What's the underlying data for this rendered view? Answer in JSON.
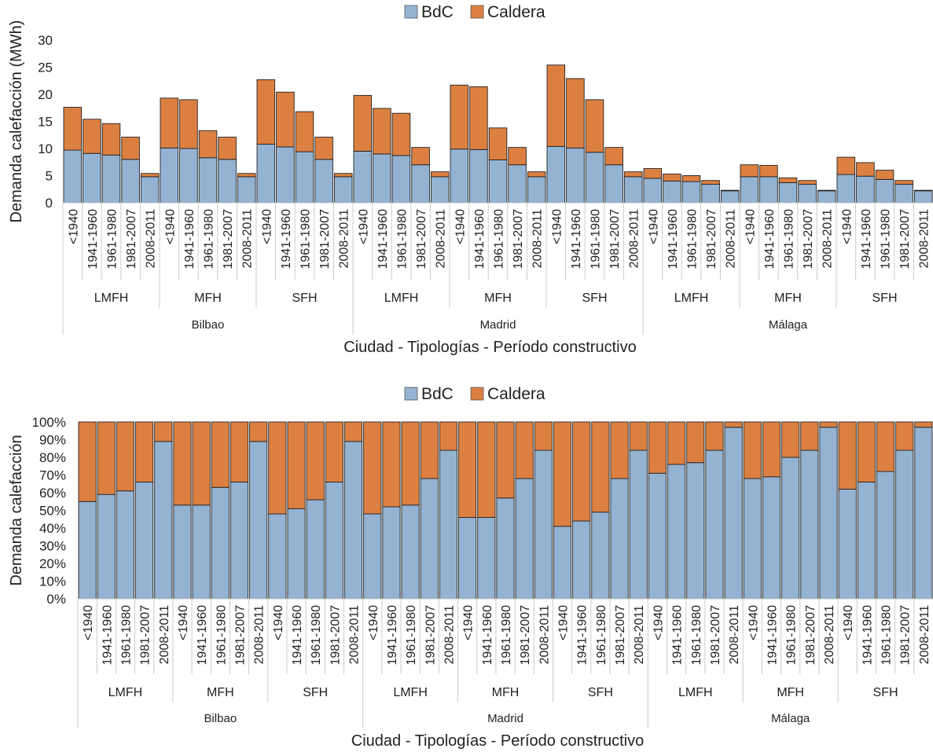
{
  "legend": [
    {
      "label": "BdC",
      "color": "#94b3d3"
    },
    {
      "label": "Caldera",
      "color": "#dc8041"
    }
  ],
  "cities": [
    "Bilbao",
    "Madrid",
    "Málaga"
  ],
  "typologies": [
    "LMFH",
    "MFH",
    "SFH"
  ],
  "periods": [
    "<1940",
    "1941-1960",
    "1961-1980",
    "1981-2007",
    "2008-2011"
  ],
  "chart_data": [
    {
      "type": "bar",
      "stacked": true,
      "ylabel": "Demanda calefacción (MWh)",
      "xlabel": "Ciudad - Tipologías - Período constructivo",
      "ylim": [
        0,
        30
      ],
      "yticks": [
        "0",
        "5",
        "10",
        "15",
        "20",
        "25",
        "30"
      ],
      "legend_position": "top",
      "series": [
        {
          "name": "BdC",
          "values": [
            9.7,
            9.1,
            8.8,
            8.0,
            4.8,
            10.1,
            10.0,
            8.3,
            8.0,
            4.8,
            10.8,
            10.3,
            9.4,
            8.0,
            4.8,
            9.5,
            9.0,
            8.7,
            7.0,
            4.8,
            9.9,
            9.8,
            7.9,
            7.0,
            4.8,
            10.4,
            10.1,
            9.3,
            7.0,
            4.8,
            4.5,
            4.0,
            3.9,
            3.4,
            2.2,
            4.8,
            4.8,
            3.7,
            3.4,
            2.2,
            5.2,
            4.9,
            4.3,
            3.4,
            2.2
          ]
        },
        {
          "name": "Caldera",
          "values": [
            7.9,
            6.3,
            5.8,
            4.1,
            0.6,
            9.2,
            9.0,
            5.0,
            4.1,
            0.6,
            11.9,
            10.1,
            7.4,
            4.1,
            0.6,
            10.3,
            8.4,
            7.8,
            3.2,
            0.9,
            11.8,
            11.6,
            5.9,
            3.2,
            0.9,
            15.0,
            12.8,
            9.7,
            3.2,
            0.9,
            1.8,
            1.3,
            1.1,
            0.7,
            0.1,
            2.2,
            2.1,
            0.9,
            0.7,
            0.1,
            3.2,
            2.5,
            1.7,
            0.7,
            0.1
          ]
        }
      ]
    },
    {
      "type": "bar",
      "stacked": true,
      "percent": true,
      "ylabel": "Demanda calefacción",
      "xlabel": "Ciudad - Tipologías - Período constructivo",
      "ylim": [
        0,
        100
      ],
      "yticks": [
        "0%",
        "10%",
        "20%",
        "30%",
        "40%",
        "50%",
        "60%",
        "70%",
        "80%",
        "90%",
        "100%"
      ],
      "legend_position": "top",
      "series": [
        {
          "name": "BdC",
          "values": [
            55,
            59,
            61,
            66,
            89,
            53,
            53,
            63,
            66,
            89,
            48,
            51,
            56,
            66,
            89,
            48,
            52,
            53,
            68,
            84,
            46,
            46,
            57,
            68,
            84,
            41,
            44,
            49,
            68,
            84,
            71,
            76,
            77,
            84,
            97,
            68,
            69,
            80,
            84,
            97,
            62,
            66,
            72,
            84,
            97
          ]
        },
        {
          "name": "Caldera",
          "values": [
            45,
            41,
            39,
            34,
            11,
            47,
            47,
            37,
            34,
            11,
            52,
            49,
            44,
            34,
            11,
            52,
            48,
            47,
            32,
            16,
            54,
            54,
            43,
            32,
            16,
            59,
            56,
            51,
            32,
            16,
            29,
            24,
            23,
            16,
            3,
            32,
            31,
            20,
            16,
            3,
            38,
            34,
            28,
            16,
            3
          ]
        }
      ]
    }
  ]
}
